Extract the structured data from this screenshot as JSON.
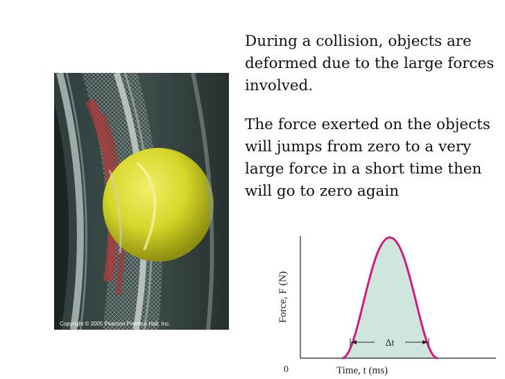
{
  "slide": {
    "paragraphs": [
      "During a collision, objects are deformed due to the large forces involved.",
      "The force exerted on the objects will jumps from zero to a very large force in a short time then will go to zero again"
    ],
    "photo_caption": "Copyright © 2005 Pearson Prentice Hall, Inc."
  },
  "graph": {
    "y_axis_label": "Force, F (N)",
    "x_axis_label": "Time, t (ms)",
    "origin_label": "0",
    "interval_label": "Δt",
    "curve_color": "#d4187f",
    "fill_color": "#cfe6dc"
  }
}
